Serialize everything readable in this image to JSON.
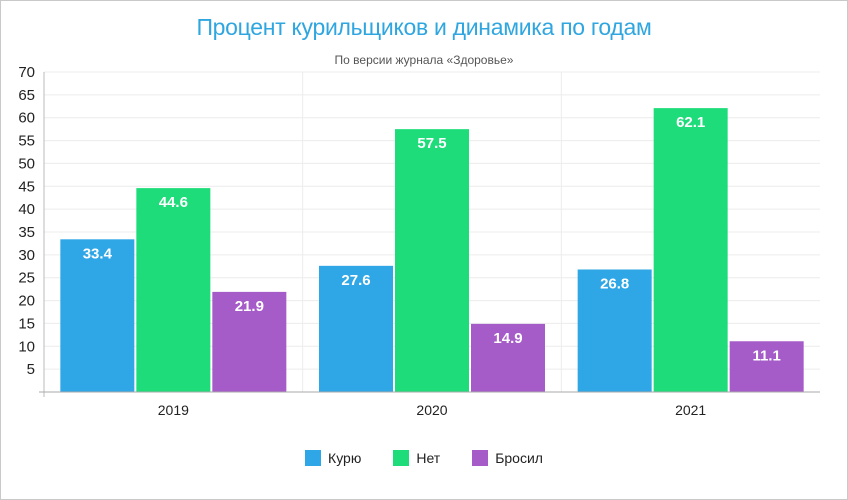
{
  "chart_data": {
    "type": "bar",
    "title": "Процент курильщиков и динамика по годам",
    "subtitle": "По версии журнала «Здоровье»",
    "categories": [
      "2019",
      "2020",
      "2021"
    ],
    "series": [
      {
        "name": "Курю",
        "color": "#2fa6e6",
        "values": [
          33.4,
          27.6,
          26.8
        ]
      },
      {
        "name": "Нет",
        "color": "#1edc7a",
        "values": [
          44.6,
          57.5,
          62.1
        ]
      },
      {
        "name": "Бросил",
        "color": "#a55bc8",
        "values": [
          21.9,
          14.9,
          11.1
        ]
      }
    ],
    "yticks": [
      5,
      10,
      15,
      20,
      25,
      30,
      35,
      40,
      45,
      50,
      55,
      60,
      65,
      70
    ],
    "ylim": [
      0,
      70
    ],
    "grid": true,
    "legend": "bottom"
  }
}
